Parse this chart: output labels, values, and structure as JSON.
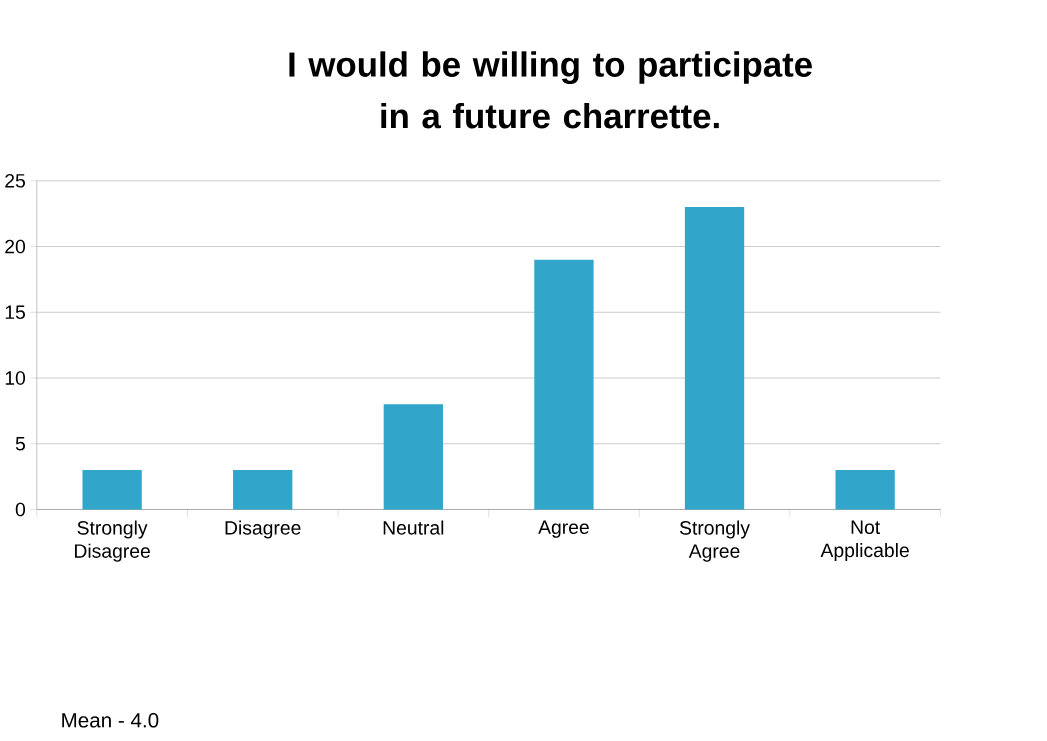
{
  "chart_data": {
    "type": "bar",
    "title": "I would be willing to participate in a future charrette.",
    "categories": [
      "Strongly Disagree",
      "Disagree",
      "Neutral",
      "Agree",
      "Strongly Agree",
      "Not Applicable"
    ],
    "values": [
      3,
      3,
      8,
      19,
      23,
      3
    ],
    "color": "#31a6ca",
    "ylim": [
      0,
      25
    ],
    "yticks": [
      0,
      5,
      10,
      15,
      20,
      25
    ],
    "grid": "y",
    "annotations": [
      "Mean - 4.0"
    ]
  }
}
